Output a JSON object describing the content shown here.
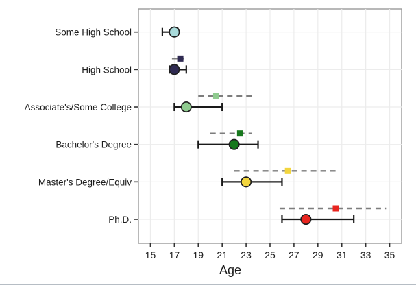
{
  "figure": {
    "bottom_divider_color": "#b6bdc4",
    "background_color": "#ffffff"
  },
  "chart_data": {
    "type": "scatter",
    "subtype": "dot-and-interval (means with error bars)",
    "orientation": "horizontal",
    "title": "",
    "xlabel": "Age",
    "ylabel": "",
    "xlim": [
      14,
      36
    ],
    "x_ticks": [
      15,
      17,
      19,
      21,
      23,
      25,
      27,
      29,
      31,
      33,
      35
    ],
    "grid": true,
    "legend_position": "none",
    "panel_border_color": "#999999",
    "grid_color": "#ececec",
    "solid_interval_color": "#1a1a1a",
    "dashed_interval_color": "#7d7d7d",
    "categories": [
      "Some High School",
      "High School",
      "Associate's/Some College",
      "Bachelor's Degree",
      "Master's Degree/Equiv",
      "Ph.D."
    ],
    "series": [
      {
        "name": "circle-solid-interval",
        "marker": "circle",
        "interval_style": "solid",
        "points": [
          {
            "category": "Some High School",
            "value": 17,
            "low": 16,
            "high": 17.3,
            "color": "#a9dbdb"
          },
          {
            "category": "High School",
            "value": 17,
            "low": 16.6,
            "high": 18,
            "color": "#2f2a52"
          },
          {
            "category": "Associate's/Some College",
            "value": 18,
            "low": 17,
            "high": 21,
            "color": "#8fcb8f"
          },
          {
            "category": "Bachelor's Degree",
            "value": 22,
            "low": 19,
            "high": 24,
            "color": "#17781d"
          },
          {
            "category": "Master's Degree/Equiv",
            "value": 23,
            "low": 21,
            "high": 26,
            "color": "#f2d53e"
          },
          {
            "category": "Ph.D.",
            "value": 28,
            "low": 26,
            "high": 32,
            "color": "#e8251f"
          }
        ]
      },
      {
        "name": "square-dashed-interval",
        "marker": "square",
        "interval_style": "dashed",
        "points": [
          {
            "category": "High School",
            "value": 17.5,
            "low": 16.8,
            "high": 17.8,
            "color": "#2f2a52"
          },
          {
            "category": "Associate's/Some College",
            "value": 20.5,
            "low": 19,
            "high": 23.8,
            "color": "#8fcb8f"
          },
          {
            "category": "Bachelor's Degree",
            "value": 22.5,
            "low": 20,
            "high": 23.5,
            "color": "#17781d"
          },
          {
            "category": "Master's Degree/Equiv",
            "value": 26.5,
            "low": 22,
            "high": 30.8,
            "color": "#f2d53e"
          },
          {
            "category": "Ph.D.",
            "value": 30.5,
            "low": 25.8,
            "high": 34.7,
            "color": "#e8251f"
          }
        ]
      }
    ]
  }
}
